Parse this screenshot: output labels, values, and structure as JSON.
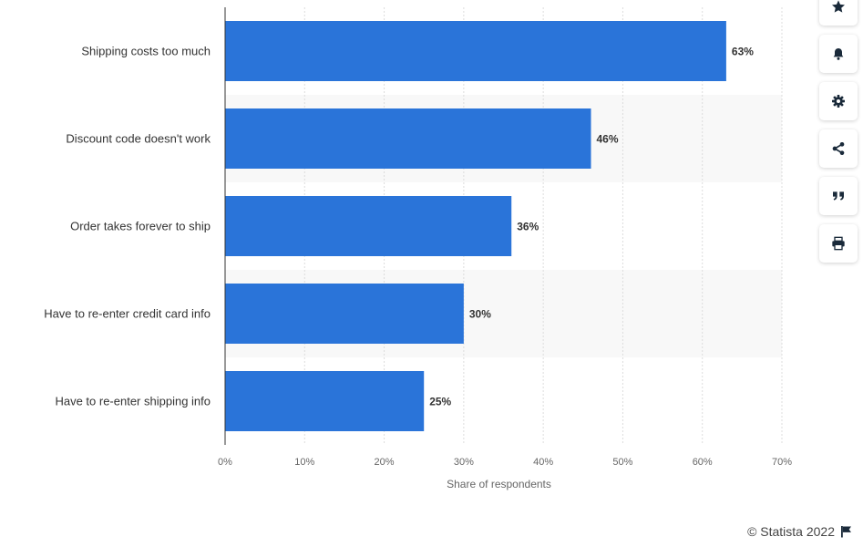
{
  "chart_data": {
    "type": "bar",
    "orientation": "horizontal",
    "categories": [
      "Shipping costs too much",
      "Discount code doesn't work",
      "Order takes forever to ship",
      "Have to re-enter credit card info",
      "Have to re-enter shipping info"
    ],
    "values": [
      63,
      46,
      36,
      30,
      25
    ],
    "value_labels": [
      "63%",
      "46%",
      "36%",
      "30%",
      "25%"
    ],
    "xlabel": "Share of respondents",
    "xlim": [
      0,
      70
    ],
    "x_ticks": [
      "0%",
      "10%",
      "20%",
      "30%",
      "40%",
      "50%",
      "60%",
      "70%"
    ],
    "grid": true,
    "bar_color": "#2a74d9"
  },
  "toolbar": {
    "icons": [
      "star-icon",
      "bell-icon",
      "gear-icon",
      "share-icon",
      "quote-icon",
      "print-icon"
    ]
  },
  "footer": {
    "credit": "© Statista 2022"
  }
}
